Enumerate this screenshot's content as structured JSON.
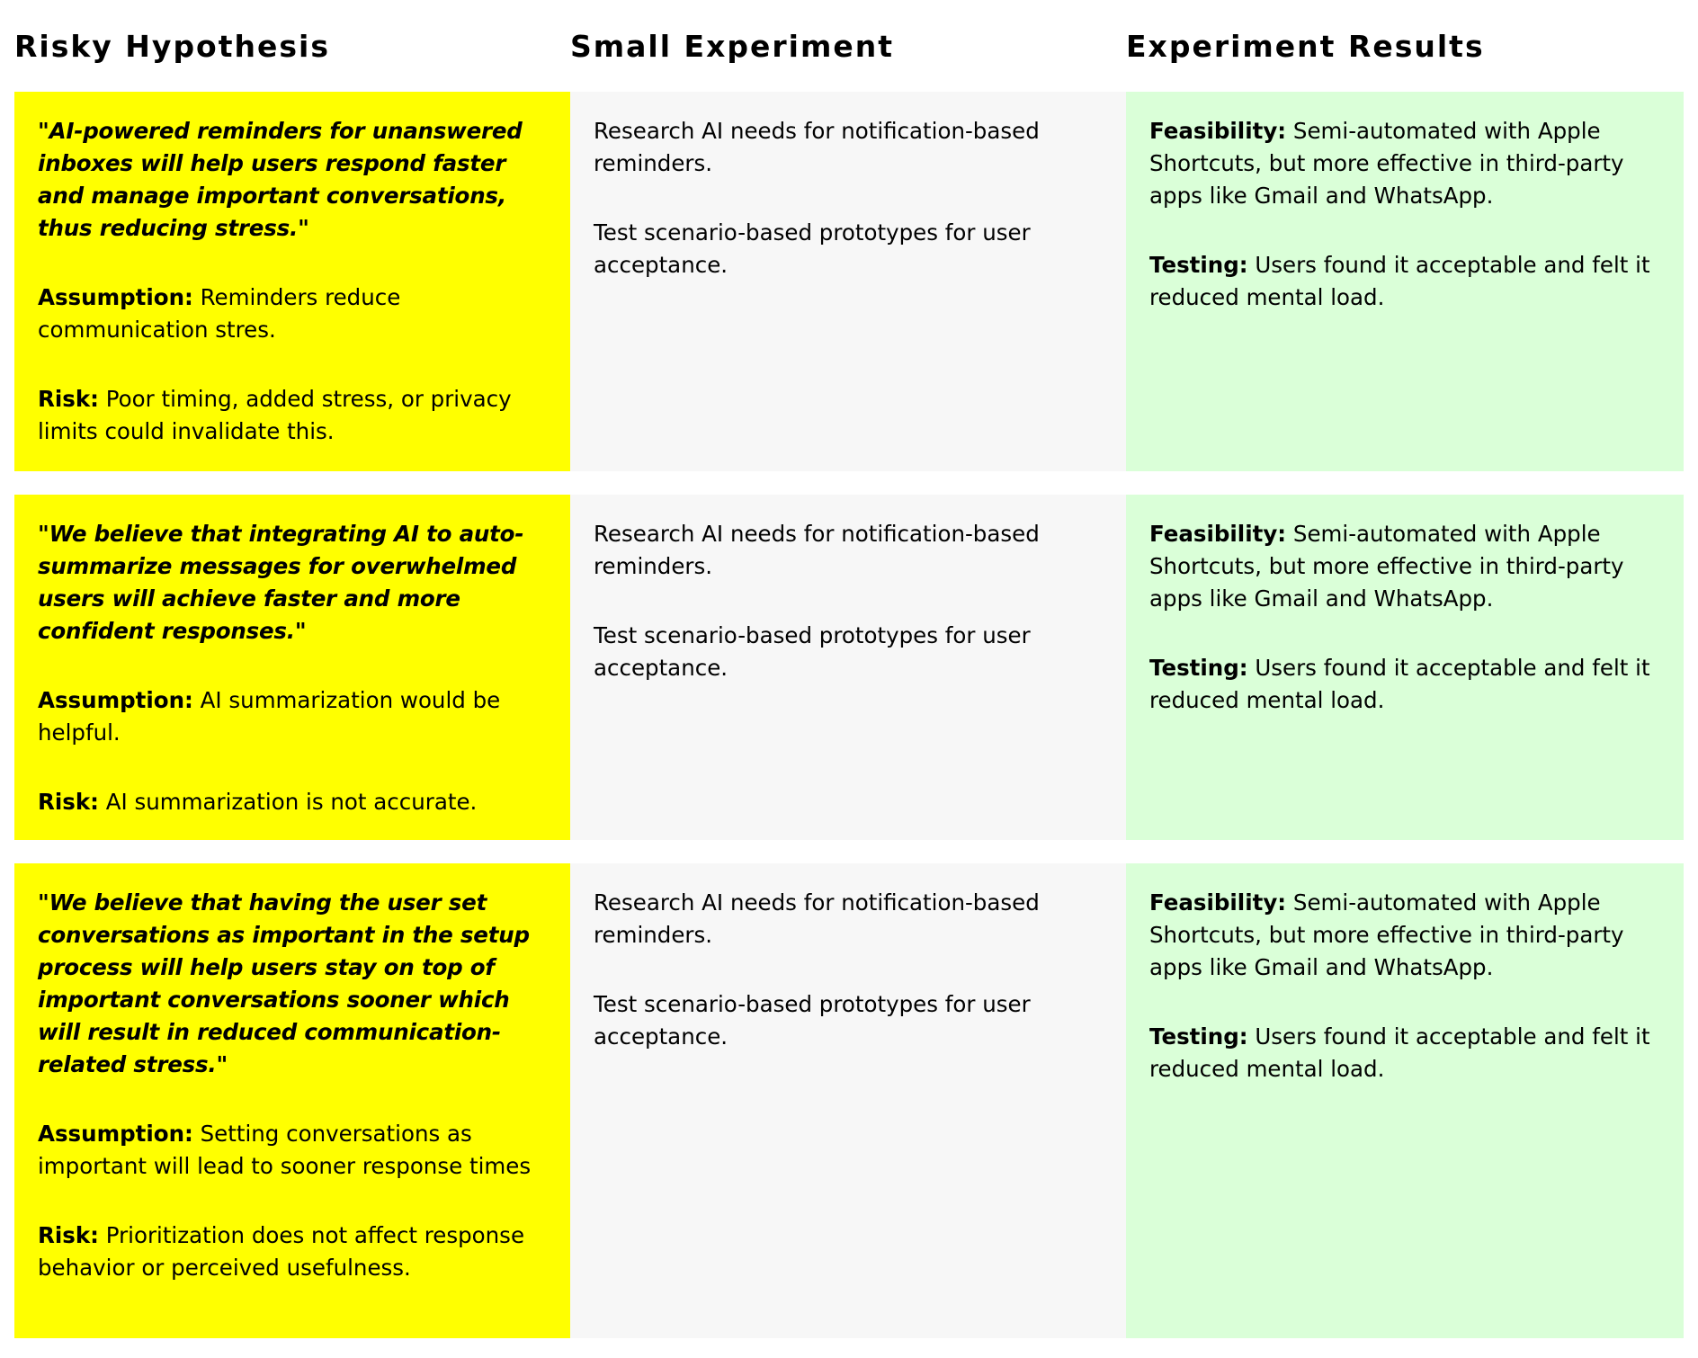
{
  "headers": {
    "hypothesis": "Risky Hypothesis",
    "experiment": "Small Experiment",
    "results": "Experiment Results"
  },
  "labels": {
    "assumption": "Assumption:",
    "risk": "Risk:",
    "feasibility": "Feasibility:",
    "testing": "Testing:"
  },
  "rows": [
    {
      "hypothesis": "\"AI-powered reminders for unanswered inboxes will help users respond faster and manage important conversations, thus reducing stress.\"",
      "assumption": "Reminders reduce communication stres.",
      "risk": "Poor timing, added stress, or privacy limits could invalidate this.",
      "experiment": [
        "Research AI needs for notification-based reminders.",
        "Test scenario-based prototypes for user acceptance."
      ],
      "feasibility": "Semi-automated with Apple Shortcuts, but more effective in third-party apps like Gmail and WhatsApp.",
      "testing": "Users found it acceptable and felt it reduced mental load."
    },
    {
      "hypothesis": "\"We believe that integrating AI to auto-summarize messages for overwhelmed users will achieve faster and more confident responses.\"",
      "assumption": "AI summarization would be helpful.",
      "risk": "AI summarization is not accurate.",
      "experiment": [
        "Research AI needs for notification-based reminders.",
        "Test scenario-based prototypes for user acceptance."
      ],
      "feasibility": "Semi-automated with Apple Shortcuts, but more effective in third-party apps like Gmail and WhatsApp.",
      "testing": "Users found it acceptable and felt it reduced mental load."
    },
    {
      "hypothesis": "\"We believe that having the user set conversations as important in the setup process will help users stay on top of important conversations sooner which will result in reduced communication-related stress.\"",
      "assumption": "Setting conversations as important will lead to sooner response times",
      "risk": "Prioritization does not affect response behavior or perceived usefulness.",
      "experiment": [
        "Research AI needs for notification-based reminders.",
        "Test scenario-based prototypes for user acceptance."
      ],
      "feasibility": "Semi-automated with Apple Shortcuts, but more effective in third-party apps like Gmail and WhatsApp.",
      "testing": "Users found it acceptable and felt it reduced mental load."
    }
  ]
}
